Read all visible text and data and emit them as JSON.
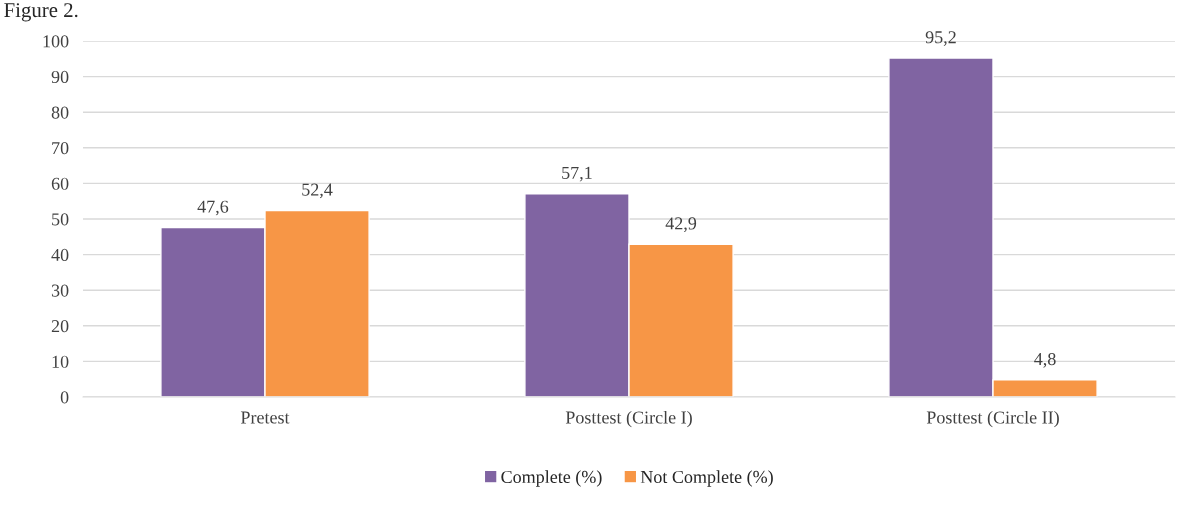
{
  "chart_data": {
    "type": "bar",
    "title": "Figure 2.",
    "categories": [
      "Pretest",
      "Posttest (Circle I)",
      "Posttest (Circle II)"
    ],
    "series": [
      {
        "name": "Complete (%)",
        "color": "#8064a2",
        "values": [
          47.6,
          57.1,
          95.2
        ],
        "value_labels": [
          "47,6",
          "57,1",
          "95,2"
        ]
      },
      {
        "name": "Not Complete (%)",
        "color": "#f79646",
        "values": [
          52.4,
          42.9,
          4.8
        ],
        "value_labels": [
          "52,4",
          "42,9",
          "4,8"
        ]
      }
    ],
    "ylim": [
      0,
      100
    ],
    "yticks": [
      0,
      10,
      20,
      30,
      40,
      50,
      60,
      70,
      80,
      90,
      100
    ],
    "grid": "y",
    "legend": "bottom"
  }
}
